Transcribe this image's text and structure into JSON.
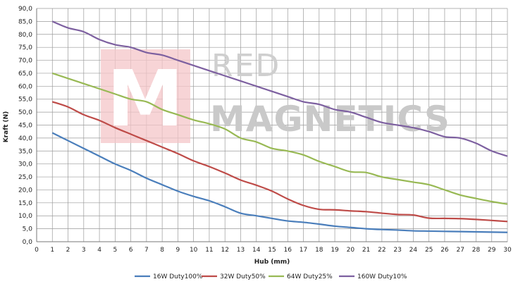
{
  "chart_data": {
    "type": "line",
    "title": "",
    "xlabel": "Hub (mm)",
    "ylabel": "Kraft (N)",
    "xlim": [
      0,
      30
    ],
    "ylim": [
      0,
      90
    ],
    "x_ticks": [
      "0",
      "1",
      "2",
      "3",
      "4",
      "5",
      "6",
      "7",
      "8",
      "9",
      "10",
      "11",
      "12",
      "13",
      "14",
      "15",
      "16",
      "17",
      "18",
      "19",
      "20",
      "21",
      "22",
      "23",
      "24",
      "25",
      "26",
      "27",
      "28",
      "29",
      "30"
    ],
    "y_ticks": [
      "0,0",
      "5,0",
      "10,0",
      "15,0",
      "20,0",
      "25,0",
      "30,0",
      "35,0",
      "40,0",
      "45,0",
      "50,0",
      "55,0",
      "60,0",
      "65,0",
      "70,0",
      "75,0",
      "80,0",
      "85,0",
      "90,0"
    ],
    "grid": true,
    "legend_position": "bottom",
    "x": [
      1,
      2,
      3,
      4,
      5,
      6,
      7,
      8,
      9,
      10,
      11,
      12,
      13,
      14,
      15,
      16,
      17,
      18,
      19,
      20,
      21,
      22,
      23,
      24,
      25,
      26,
      27,
      28,
      29,
      30
    ],
    "series": [
      {
        "name": "16W Duty100%",
        "color": "#4a7ebb",
        "values": [
          42,
          39,
          36,
          33,
          30,
          27.5,
          24.5,
          22,
          19.5,
          17.5,
          15.8,
          13.5,
          11,
          10,
          9,
          8,
          7.5,
          6.8,
          6,
          5.5,
          5,
          4.7,
          4.5,
          4.2,
          4.1,
          4,
          3.9,
          3.8,
          3.7,
          3.6
        ]
      },
      {
        "name": "32W Duty50%",
        "color": "#be4b48",
        "values": [
          54,
          52,
          49,
          46.8,
          44,
          41.5,
          39,
          36.5,
          34,
          31.2,
          29,
          26.5,
          23.8,
          21.8,
          19.5,
          16.5,
          14,
          12.5,
          12.3,
          11.9,
          11.6,
          11,
          10.5,
          10.3,
          9.1,
          9,
          8.9,
          8.6,
          8.2,
          7.8
        ]
      },
      {
        "name": "64W Duty25%",
        "color": "#98b954",
        "values": [
          65,
          63,
          61,
          59,
          57,
          55,
          54,
          51,
          49,
          47,
          45.5,
          43.5,
          40,
          38.5,
          36,
          35,
          33.5,
          31,
          29,
          27,
          26.7,
          25,
          24,
          23,
          22,
          20,
          18,
          16.7,
          15.5,
          14.5
        ]
      },
      {
        "name": "160W Duty10%",
        "color": "#7d60a0",
        "values": [
          85,
          82.5,
          81,
          78,
          76,
          75,
          73,
          72,
          70,
          68,
          66,
          64,
          62,
          60,
          58,
          56,
          54,
          53,
          51,
          50,
          48,
          46,
          45,
          44,
          42.5,
          40.5,
          40,
          38,
          35,
          33
        ]
      }
    ]
  },
  "watermark": {
    "line1": "RED",
    "line2": "MAGNETICS",
    "logo_letter": "M",
    "logo_color": "#f4c6c8"
  }
}
